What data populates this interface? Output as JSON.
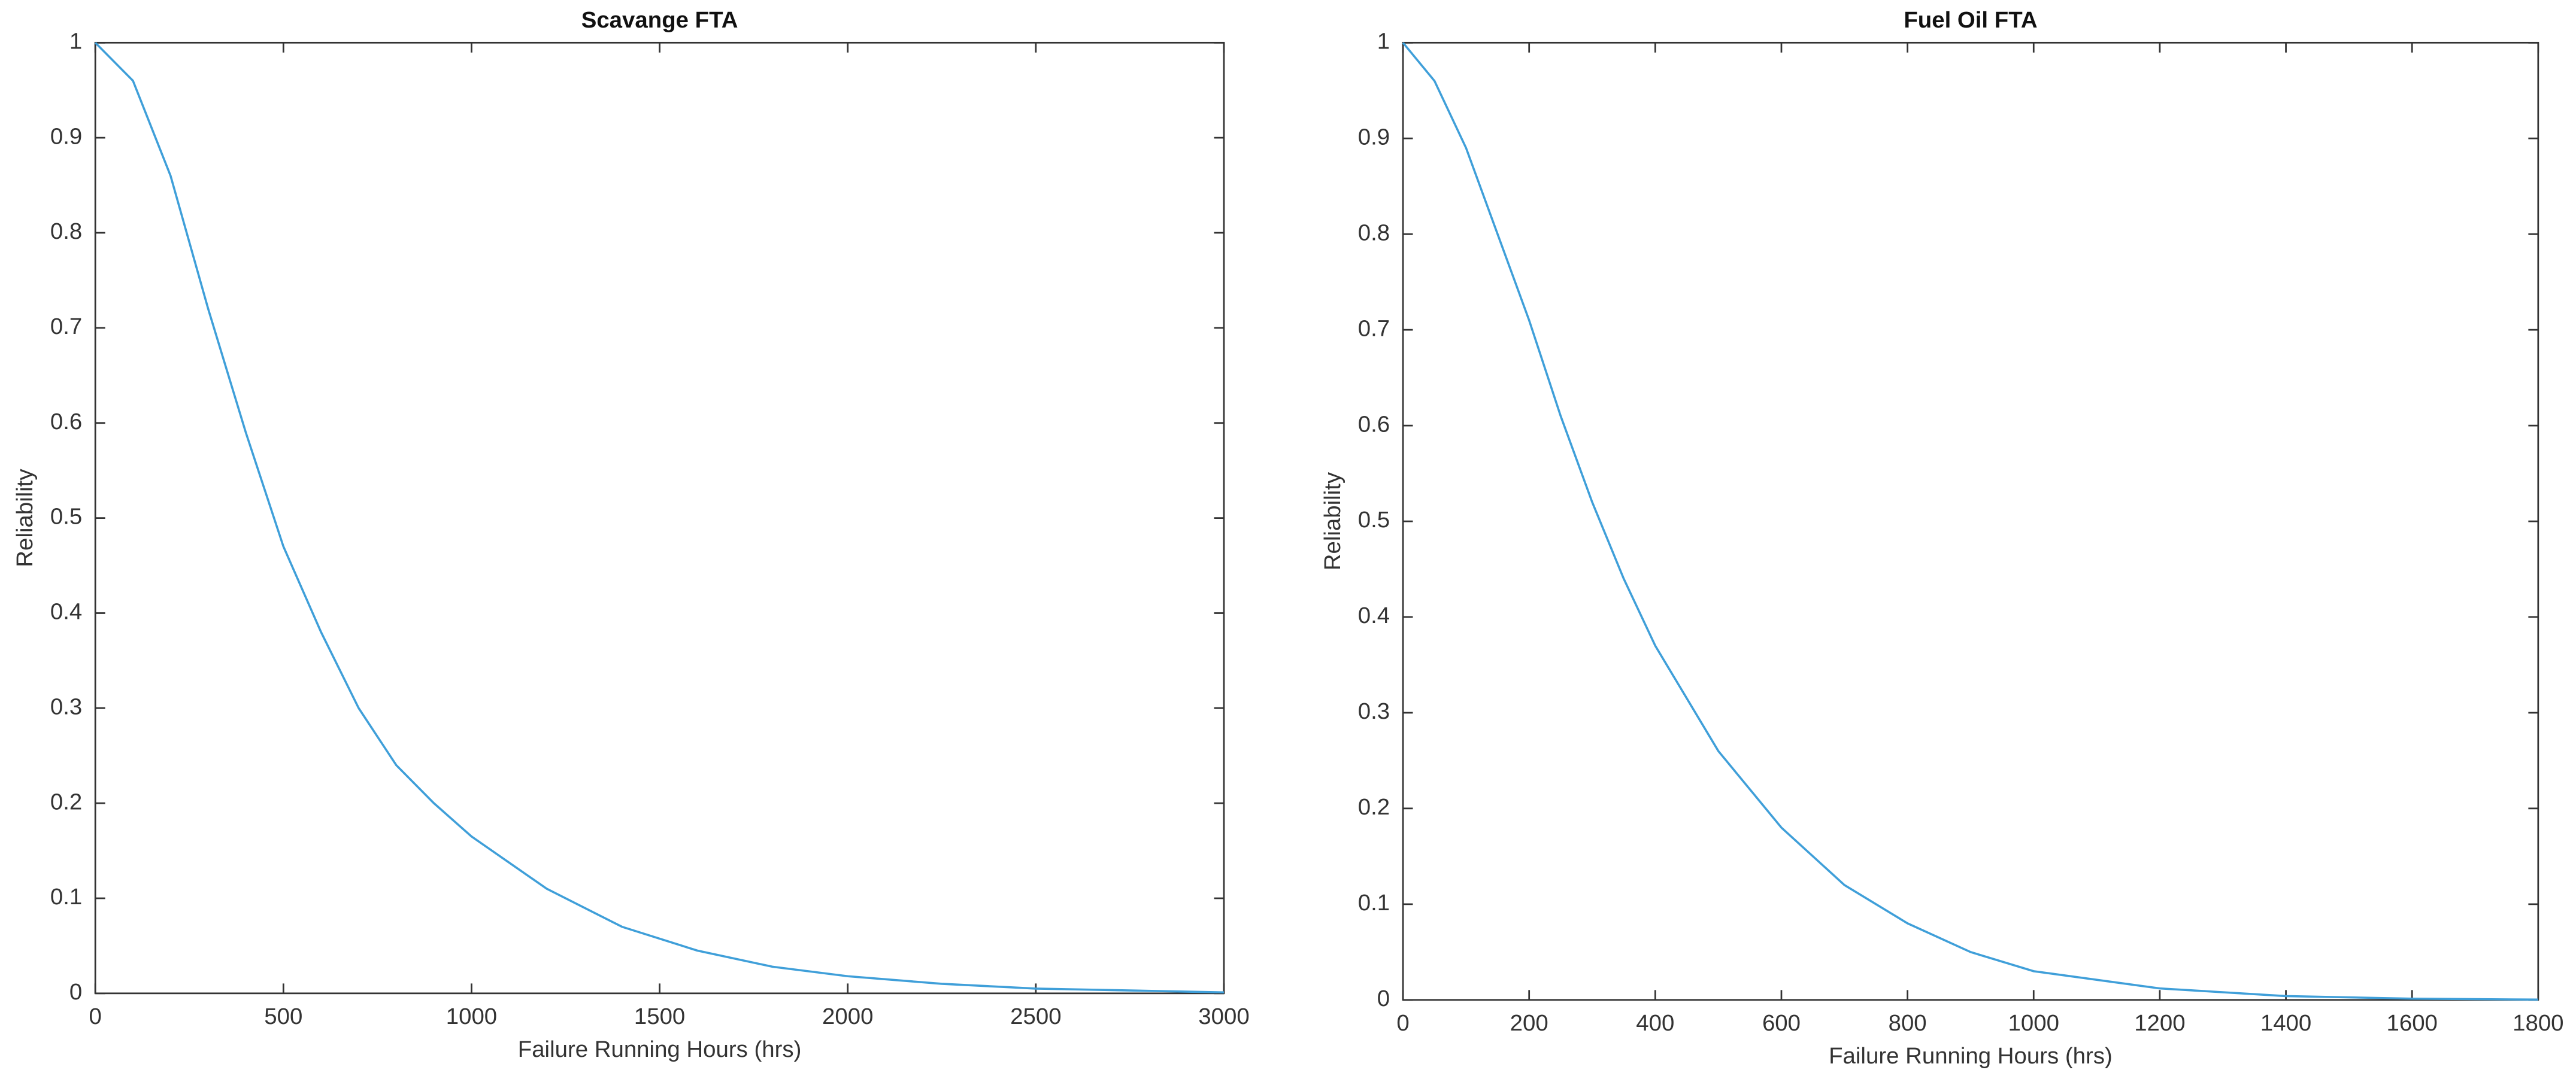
{
  "chart_data": [
    {
      "type": "line",
      "title": "Scavange FTA",
      "xlabel": "Failure Running Hours (hrs)",
      "ylabel": "Reliability",
      "x": [
        0,
        100,
        200,
        300,
        400,
        500,
        600,
        700,
        800,
        900,
        1000,
        1200,
        1400,
        1600,
        1800,
        2000,
        2250,
        2500,
        2750,
        3000
      ],
      "series": [
        {
          "color": "#3f9fd9",
          "values": [
            1,
            0.96,
            0.86,
            0.72,
            0.59,
            0.47,
            0.38,
            0.3,
            0.24,
            0.2,
            0.165,
            0.11,
            0.07,
            0.045,
            0.028,
            0.018,
            0.01,
            0.005,
            0.003,
            0.001
          ]
        }
      ],
      "xlim": [
        0,
        3000
      ],
      "xticks": [
        0,
        500,
        1000,
        1500,
        2000,
        2500,
        3000
      ],
      "ylim": [
        0,
        1
      ],
      "yticks": [
        0,
        0.1,
        0.2,
        0.3,
        0.4,
        0.5,
        0.6,
        0.7,
        0.8,
        0.9,
        1
      ]
    },
    {
      "type": "line",
      "title": "Fuel Oil FTA",
      "xlabel": "Failure Running Hours (hrs)",
      "ylabel": "Reliability",
      "x": [
        0,
        50,
        100,
        150,
        200,
        250,
        300,
        350,
        400,
        500,
        600,
        700,
        800,
        900,
        1000,
        1200,
        1400,
        1600,
        1800
      ],
      "series": [
        {
          "color": "#3f9fd9",
          "values": [
            1,
            0.96,
            0.89,
            0.8,
            0.71,
            0.61,
            0.52,
            0.44,
            0.37,
            0.26,
            0.18,
            0.12,
            0.08,
            0.05,
            0.03,
            0.012,
            0.004,
            0.0013,
            0.0003
          ]
        }
      ],
      "xlim": [
        0,
        1800
      ],
      "xticks": [
        0,
        200,
        400,
        600,
        800,
        1000,
        1200,
        1400,
        1600,
        1800
      ],
      "ylim": [
        0,
        1
      ],
      "yticks": [
        0,
        0.1,
        0.2,
        0.3,
        0.4,
        0.5,
        0.6,
        0.7,
        0.8,
        0.9,
        1
      ]
    }
  ]
}
